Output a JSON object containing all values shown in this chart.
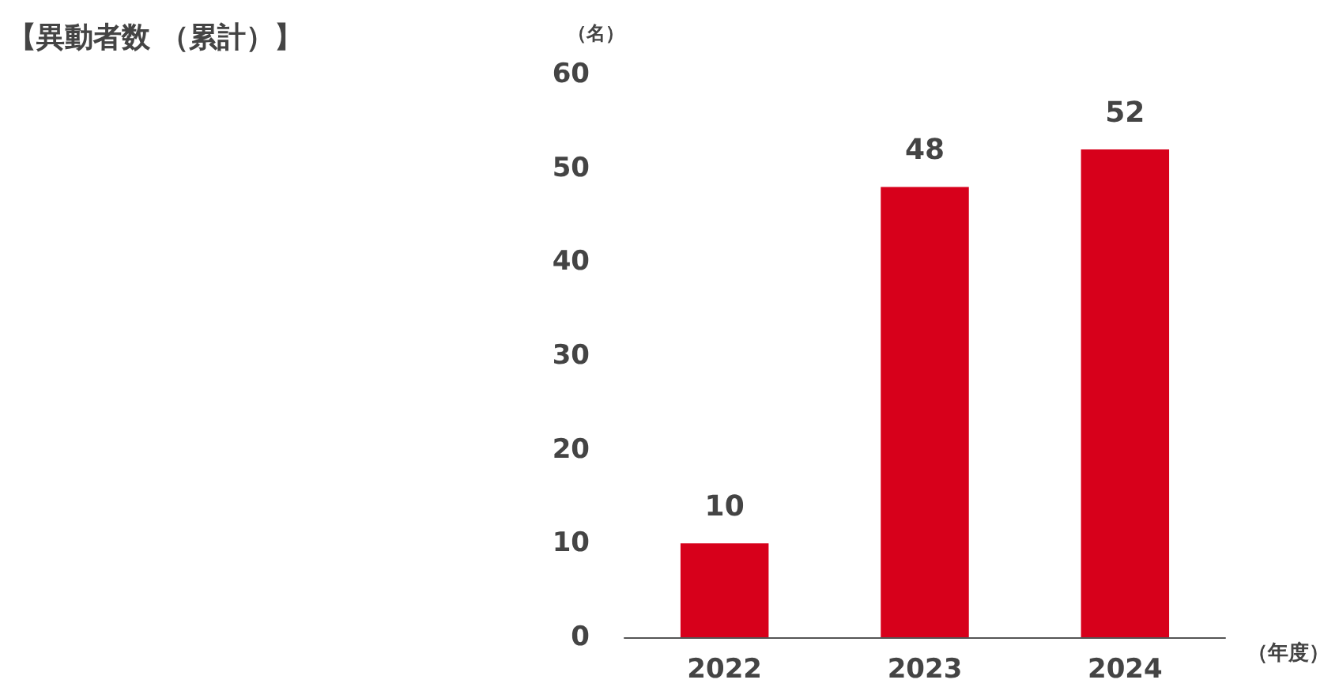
{
  "chart_data": {
    "type": "bar",
    "title": "【異動者数 （累計）】",
    "ylabel": "（名）",
    "xlabel": "（年度）",
    "categories": [
      "2022",
      "2023",
      "2024"
    ],
    "values": [
      10,
      48,
      52
    ],
    "color": "#d7001b",
    "ylim": [
      0,
      60
    ],
    "yticks": [
      0,
      10,
      20,
      30,
      40,
      50,
      60
    ],
    "grid": false,
    "data_labels": true
  }
}
